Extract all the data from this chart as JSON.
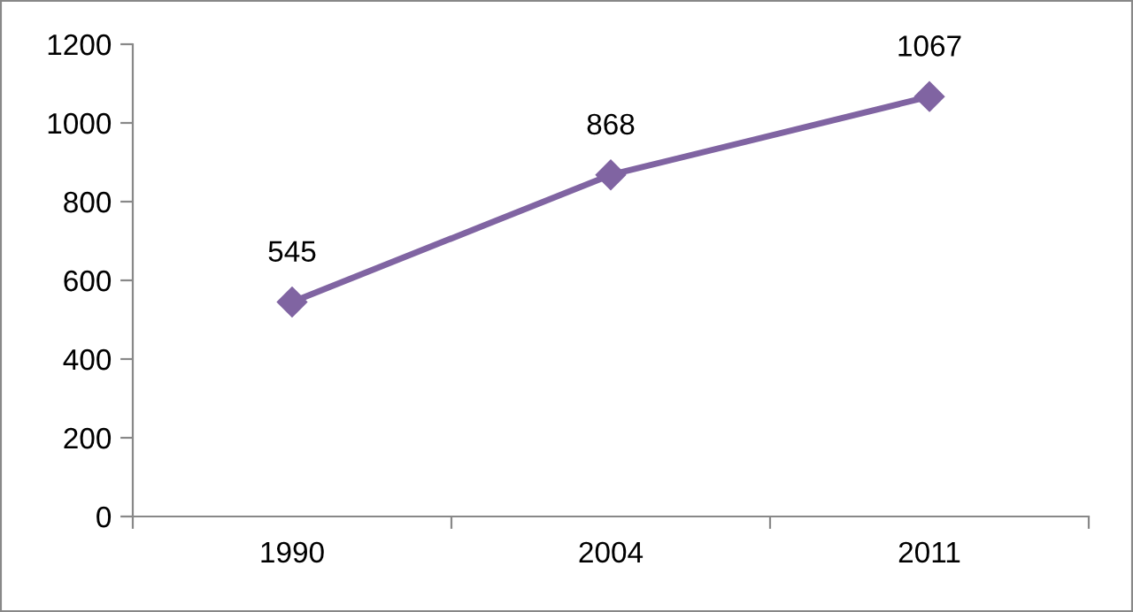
{
  "chart_data": {
    "type": "line",
    "categories": [
      "1990",
      "2004",
      "2011"
    ],
    "series": [
      {
        "color": "#8064a2",
        "values": [
          545,
          868,
          1067
        ]
      }
    ],
    "ylim": [
      0,
      1200
    ],
    "yticks": [
      0,
      200,
      400,
      600,
      800,
      1000,
      1200
    ],
    "grid": false,
    "legend": false,
    "marker": "diamond",
    "line_style": "solid",
    "data_labels": true
  }
}
